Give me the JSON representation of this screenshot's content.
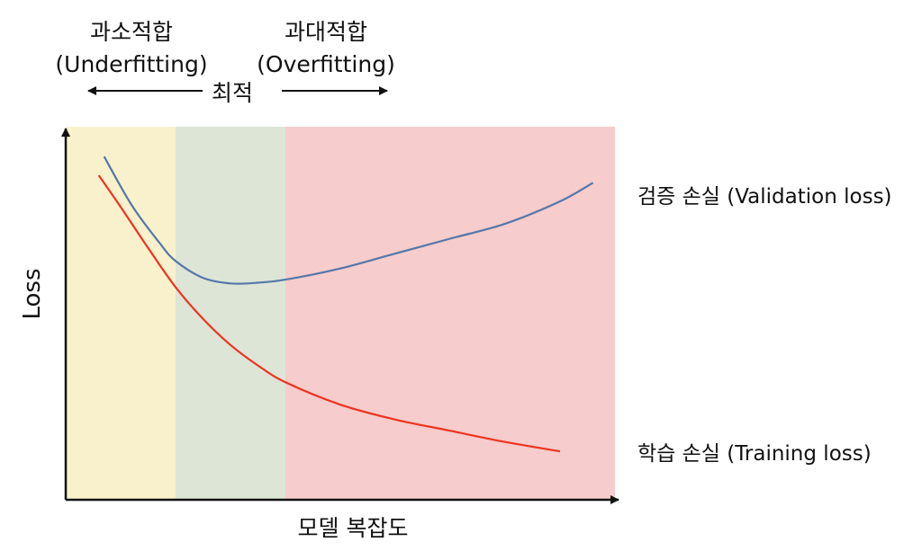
{
  "chart_data": {
    "type": "line",
    "xlabel": "모델 복잡도",
    "ylabel": "Loss",
    "x_range": [
      0,
      10
    ],
    "y_range": [
      0,
      10
    ],
    "grid": false,
    "regions": [
      {
        "name": "underfitting",
        "x": [
          0,
          2
        ],
        "color": "#f9f1cc"
      },
      {
        "name": "optimal",
        "x": [
          2,
          4
        ],
        "color": "#dde5d6"
      },
      {
        "name": "overfitting",
        "x": [
          4,
          10
        ],
        "color": "#f6cccc"
      }
    ],
    "series": [
      {
        "name": "검증 손실 (Validation loss)",
        "color": "#5577aa",
        "x": [
          0.7,
          1.2,
          1.7,
          2.0,
          2.5,
          3.0,
          3.5,
          4.0,
          5.0,
          6.0,
          7.0,
          8.0,
          9.0,
          9.6
        ],
        "y": [
          9.2,
          7.9,
          6.9,
          6.4,
          5.95,
          5.8,
          5.82,
          5.9,
          6.2,
          6.6,
          7.0,
          7.4,
          8.0,
          8.5
        ]
      },
      {
        "name": "학습 손실 (Training loss)",
        "color": "#ee3322",
        "x": [
          0.6,
          1.0,
          1.5,
          2.0,
          2.5,
          3.0,
          3.5,
          4.0,
          5.0,
          6.0,
          7.0,
          8.0,
          9.0
        ],
        "y": [
          8.7,
          7.85,
          6.75,
          5.7,
          4.85,
          4.15,
          3.6,
          3.15,
          2.55,
          2.15,
          1.85,
          1.55,
          1.3
        ]
      }
    ],
    "annotations": {
      "underfitting_ko": "과소적합",
      "underfitting_en": "(Underfitting)",
      "overfitting_ko": "과대적합",
      "overfitting_en": "(Overfitting)",
      "optimal": "최적"
    }
  },
  "colors": {
    "axis": "#111111",
    "text": "#111111"
  }
}
